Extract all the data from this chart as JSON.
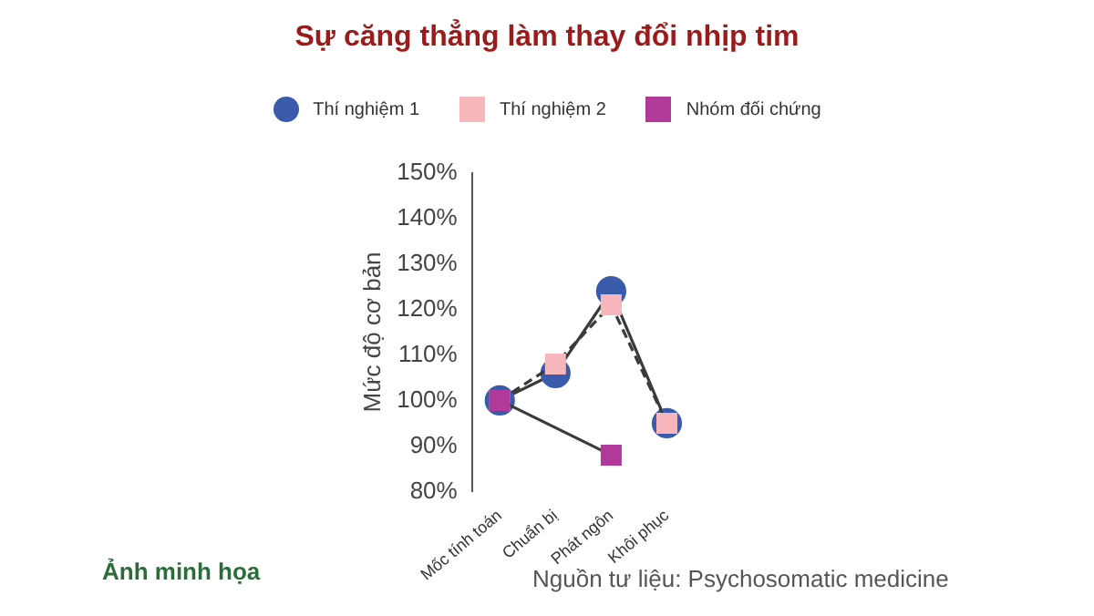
{
  "chart_data": {
    "type": "line",
    "title": "Sự căng thẳng làm thay đổi nhịp tim",
    "ylabel": "Mức độ cơ bản",
    "categories": [
      "Mốc tính toán",
      "Chuẩn bị",
      "Phát ngôn",
      "Khôi phục"
    ],
    "series": [
      {
        "name": "Thí nghiệm 1",
        "color": "#3a5bab",
        "marker": "circle",
        "line_style": "solid",
        "values": [
          100,
          106,
          124,
          95
        ]
      },
      {
        "name": "Thí nghiệm 2",
        "color": "#f6b6bb",
        "marker": "square",
        "line_style": "dashed",
        "values": [
          100,
          108,
          121,
          95
        ]
      },
      {
        "name": "Nhóm đối chứng",
        "color": "#b0399a",
        "marker": "square",
        "line_style": "solid",
        "values": [
          100,
          null,
          88,
          null
        ]
      }
    ],
    "ylim": [
      80,
      150
    ],
    "yticks": [
      {
        "value": 80,
        "label": "80%"
      },
      {
        "value": 90,
        "label": "90%"
      },
      {
        "value": 100,
        "label": "100%"
      },
      {
        "value": 110,
        "label": "110%"
      },
      {
        "value": 120,
        "label": "120%"
      },
      {
        "value": 130,
        "label": "130%"
      },
      {
        "value": 140,
        "label": "140%"
      },
      {
        "value": 150,
        "label": "150%"
      }
    ],
    "grid": false,
    "legend": "top",
    "annotations": [
      "Ảnh minh họa",
      "Nguồn tư liệu: Psychosomatic medicine"
    ]
  }
}
